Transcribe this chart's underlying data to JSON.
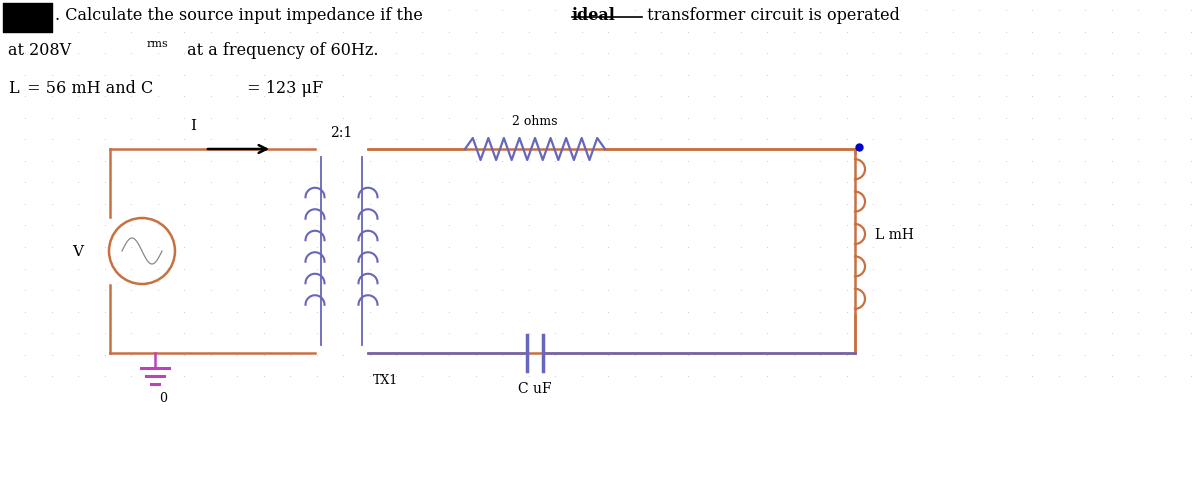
{
  "title_line1": ". Calculate the source input impedance if the ",
  "title_bold": "ideal",
  "title_line1b": " transformer circuit is operated",
  "title_line2": "at 208V",
  "title_rms": "rms",
  "title_line2b": " at a frequency of 60Hz.",
  "param_L": "L",
  "param_eq1": " = 56 mH and C",
  "param_eq2": " = 123 μF",
  "bg_color": "#ffffff",
  "grid_color": "#c0d0e0",
  "circuit_color": "#c87040",
  "transformer_color": "#6666bb",
  "resistor_color": "#6666bb",
  "capacitor_color": "#6666bb",
  "label_21": "2:1",
  "label_tx": "TX1",
  "label_R": "2 ohms",
  "label_L": "L mH",
  "label_C": "C uF",
  "label_V": "V",
  "label_I": "I",
  "label_gnd": "0",
  "dot_color": "#0000cc",
  "gnd_color": "#bb44bb",
  "arrow_color": "#000000"
}
